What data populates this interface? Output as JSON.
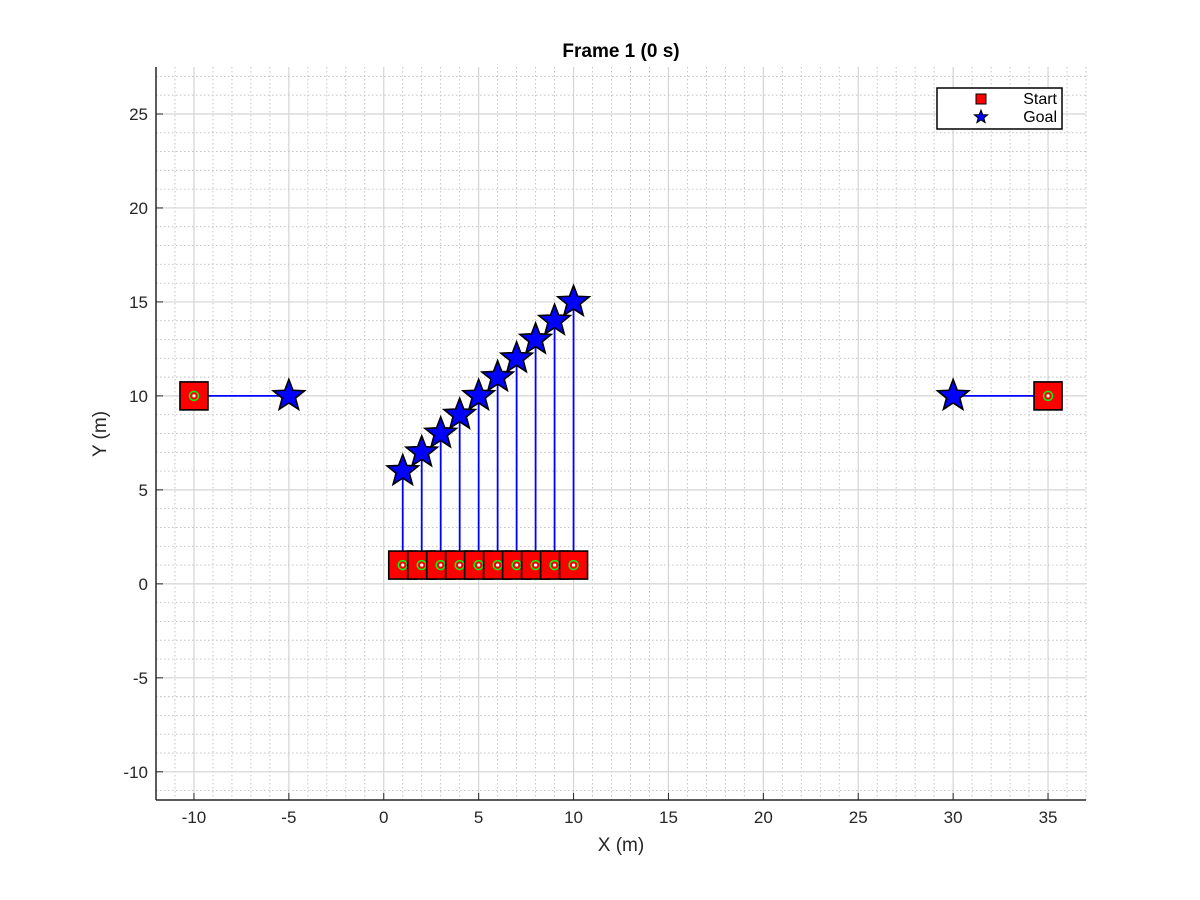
{
  "chart_data": {
    "type": "scatter",
    "title": "Frame 1 (0 s)",
    "xlabel": "X (m)",
    "ylabel": "Y (m)",
    "xlim": [
      -12,
      37
    ],
    "ylim": [
      -11.5,
      27.5
    ],
    "xticks": [
      -10,
      -5,
      0,
      5,
      10,
      15,
      20,
      25,
      30,
      35
    ],
    "yticks": [
      -10,
      -5,
      0,
      5,
      10,
      15,
      20,
      25
    ],
    "grid": "on",
    "minor_grid": "on",
    "legend_location": "top-right",
    "legend": [
      {
        "label": "Start",
        "marker": "square",
        "color": "#ff0000"
      },
      {
        "label": "Goal",
        "marker": "star",
        "color": "#0000ff"
      }
    ],
    "colors": {
      "start": "#ff0000",
      "goal": "#0000ff",
      "path": "#0000ff",
      "agent": "#00ff00"
    },
    "agents": [
      {
        "start": [
          -10,
          10
        ],
        "goal": [
          -5,
          10
        ]
      },
      {
        "start": [
          1,
          1
        ],
        "goal": [
          1,
          6
        ]
      },
      {
        "start": [
          2,
          1
        ],
        "goal": [
          2,
          7
        ]
      },
      {
        "start": [
          3,
          1
        ],
        "goal": [
          3,
          8
        ]
      },
      {
        "start": [
          4,
          1
        ],
        "goal": [
          4,
          9
        ]
      },
      {
        "start": [
          5,
          1
        ],
        "goal": [
          5,
          10
        ]
      },
      {
        "start": [
          6,
          1
        ],
        "goal": [
          6,
          11
        ]
      },
      {
        "start": [
          7,
          1
        ],
        "goal": [
          7,
          12
        ]
      },
      {
        "start": [
          8,
          1
        ],
        "goal": [
          8,
          13
        ]
      },
      {
        "start": [
          9,
          1
        ],
        "goal": [
          9,
          14
        ]
      },
      {
        "start": [
          10,
          1
        ],
        "goal": [
          10,
          15
        ]
      },
      {
        "start": [
          35,
          10
        ],
        "goal": [
          30,
          10
        ]
      }
    ]
  }
}
